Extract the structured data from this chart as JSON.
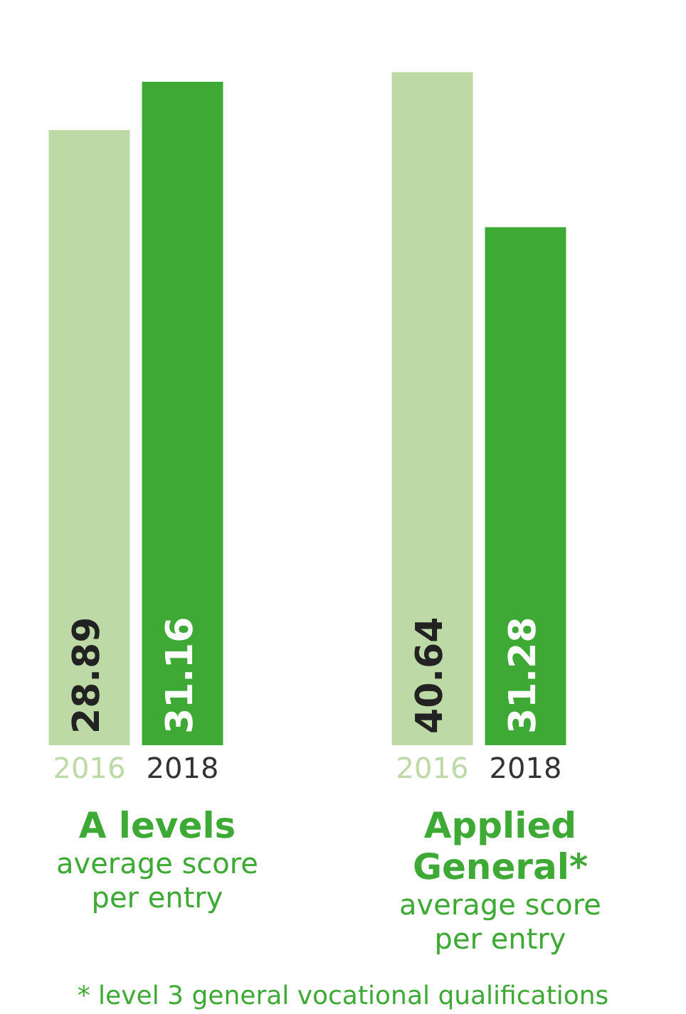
{
  "chart_data": [
    {
      "type": "bar",
      "title": "A levels",
      "subtitle": "average score per entry",
      "categories": [
        "2016",
        "2018"
      ],
      "values": [
        28.89,
        31.16
      ],
      "colors": [
        "#bcd9a6",
        "#3eaa35"
      ],
      "data_labels": true,
      "tick_labels": "x",
      "grid": false,
      "legend": false
    },
    {
      "type": "bar",
      "title": "Applied General*",
      "subtitle": "average score per entry",
      "categories": [
        "2016",
        "2018"
      ],
      "values": [
        40.64,
        31.28
      ],
      "colors": [
        "#bcd9a6",
        "#3eaa35"
      ],
      "data_labels": true,
      "tick_labels": "x",
      "grid": false,
      "legend": false,
      "annotations": [
        "* level 3 general vocational qualifications"
      ]
    }
  ]
}
